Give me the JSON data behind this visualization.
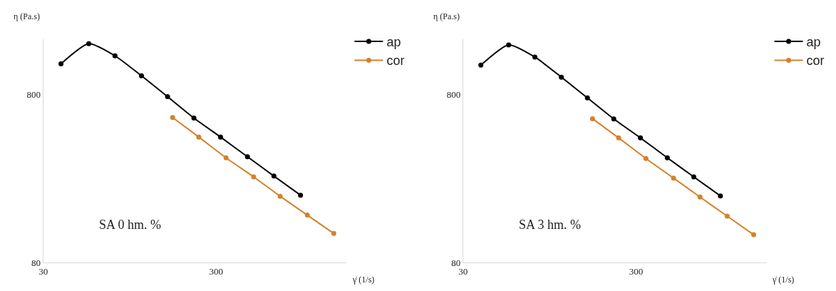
{
  "chart_data": [
    {
      "type": "line",
      "xlabel": "γ̇ (1/s)",
      "ylabel": "η (Pa.s)",
      "log": "xy",
      "legend": "top right",
      "marker": "circle",
      "line_style": "solid",
      "xlim": [
        30,
        1700
      ],
      "ylim": [
        80,
        1700
      ],
      "xticks": [
        30,
        300
      ],
      "yticks": [
        80,
        800
      ],
      "annotations": [
        "SA 0 hm. %"
      ],
      "series": [
        {
          "name": "ap",
          "color": "#000000",
          "x": [
            38,
            55,
            78,
            111,
            157,
            223,
            318,
            455,
            647,
            922
          ],
          "values": [
            1211,
            1595,
            1352,
            1028,
            773,
            577,
            445,
            340,
            261,
            201
          ]
        },
        {
          "name": "cor",
          "color": "#d4822a",
          "x": [
            168,
            238,
            342,
            494,
            703,
            1009,
            1436
          ],
          "values": [
            581,
            445,
            335,
            258,
            198,
            153,
            119
          ]
        }
      ]
    },
    {
      "type": "line",
      "xlabel": "γ̇ (1/s)",
      "ylabel": "η (Pa.s)",
      "log": "xy",
      "legend": "top right",
      "marker": "circle",
      "line_style": "solid",
      "xlim": [
        30,
        1700
      ],
      "ylim": [
        80,
        1700
      ],
      "xticks": [
        30,
        300
      ],
      "yticks": [
        80,
        800
      ],
      "annotations": [
        "SA 3 hm. %"
      ],
      "series": [
        {
          "name": "ap",
          "color": "#000000",
          "x": [
            38,
            55,
            78,
            111,
            157,
            223,
            318,
            455,
            647,
            922
          ],
          "values": [
            1190,
            1570,
            1330,
            1010,
            760,
            570,
            440,
            335,
            258,
            199
          ]
        },
        {
          "name": "cor",
          "color": "#d4822a",
          "x": [
            168,
            238,
            342,
            494,
            703,
            1009,
            1436
          ],
          "values": [
            572,
            440,
            332,
            254,
            196,
            151,
            117
          ]
        }
      ]
    }
  ]
}
